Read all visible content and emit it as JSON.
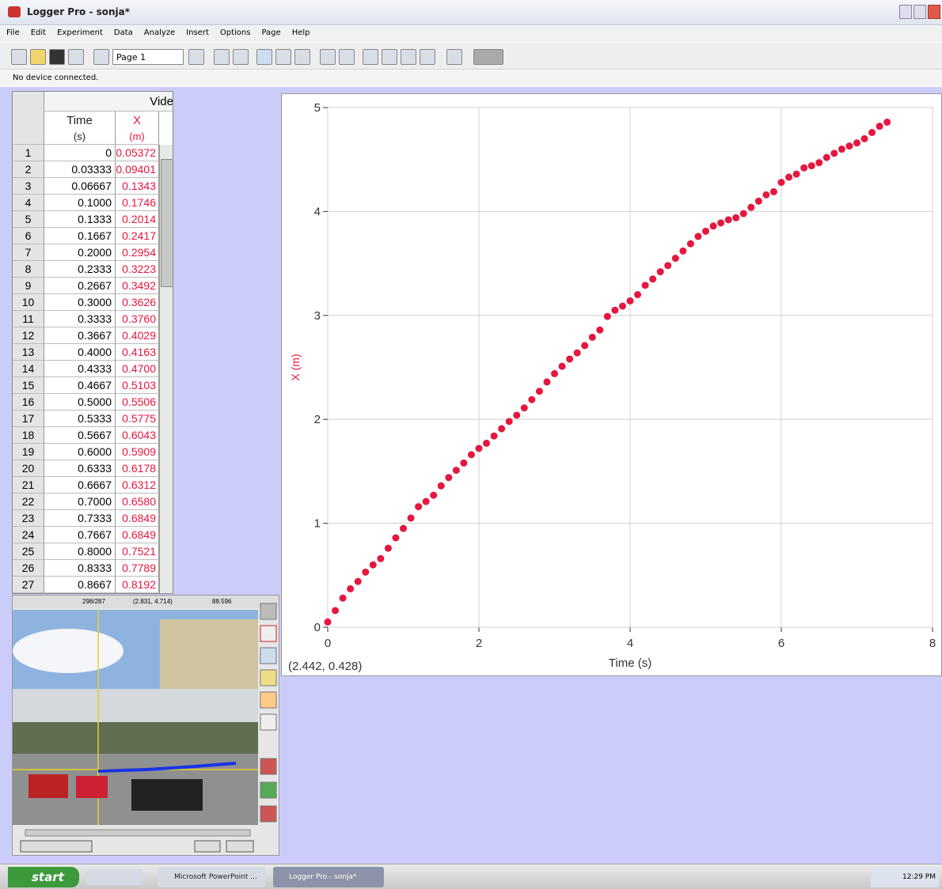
{
  "window": {
    "title": "Logger Pro - sonja*"
  },
  "menu": [
    "File",
    "Edit",
    "Experiment",
    "Data",
    "Analyze",
    "Insert",
    "Options",
    "Page",
    "Help"
  ],
  "toolbar": {
    "page": "Page 1"
  },
  "status": "No device connected.",
  "table": {
    "group": "Vide",
    "columns": [
      {
        "name": "Time",
        "unit": "(s)"
      },
      {
        "name": "X",
        "unit": "(m)"
      }
    ],
    "rows": [
      [
        "1",
        "0",
        "0.05372"
      ],
      [
        "2",
        "0.03333",
        "0.09401"
      ],
      [
        "3",
        "0.06667",
        "0.1343"
      ],
      [
        "4",
        "0.1000",
        "0.1746"
      ],
      [
        "5",
        "0.1333",
        "0.2014"
      ],
      [
        "6",
        "0.1667",
        "0.2417"
      ],
      [
        "7",
        "0.2000",
        "0.2954"
      ],
      [
        "8",
        "0.2333",
        "0.3223"
      ],
      [
        "9",
        "0.2667",
        "0.3492"
      ],
      [
        "10",
        "0.3000",
        "0.3626"
      ],
      [
        "11",
        "0.3333",
        "0.3760"
      ],
      [
        "12",
        "0.3667",
        "0.4029"
      ],
      [
        "13",
        "0.4000",
        "0.4163"
      ],
      [
        "14",
        "0.4333",
        "0.4700"
      ],
      [
        "15",
        "0.4667",
        "0.5103"
      ],
      [
        "16",
        "0.5000",
        "0.5506"
      ],
      [
        "17",
        "0.5333",
        "0.5775"
      ],
      [
        "18",
        "0.5667",
        "0.6043"
      ],
      [
        "19",
        "0.6000",
        "0.5909"
      ],
      [
        "20",
        "0.6333",
        "0.6178"
      ],
      [
        "21",
        "0.6667",
        "0.6312"
      ],
      [
        "22",
        "0.7000",
        "0.6580"
      ],
      [
        "23",
        "0.7333",
        "0.6849"
      ],
      [
        "24",
        "0.7667",
        "0.6849"
      ],
      [
        "25",
        "0.8000",
        "0.7521"
      ],
      [
        "26",
        "0.8333",
        "0.7789"
      ],
      [
        "27",
        "0.8667",
        "0.8192"
      ]
    ]
  },
  "chart_data": {
    "type": "scatter",
    "x_label": "Time (s)",
    "y_label": "X (m)",
    "readout": "(2.442, 0.428)",
    "color": "#e5173f",
    "grid": true,
    "xlim": [
      0,
      8
    ],
    "ylim": [
      0,
      5
    ],
    "xticks": [
      0,
      2,
      4,
      6,
      8
    ],
    "yticks": [
      0,
      1,
      2,
      3,
      4,
      5
    ],
    "x": [
      0,
      0.1,
      0.2,
      0.3,
      0.4,
      0.5,
      0.6,
      0.7,
      0.8,
      0.9,
      1.0,
      1.1,
      1.2,
      1.3,
      1.4,
      1.5,
      1.6,
      1.7,
      1.8,
      1.9,
      2.0,
      2.1,
      2.2,
      2.3,
      2.4,
      2.5,
      2.6,
      2.7,
      2.8,
      2.9,
      3.0,
      3.1,
      3.2,
      3.3,
      3.4,
      3.5,
      3.6,
      3.7,
      3.8,
      3.9,
      4.0,
      4.1,
      4.2,
      4.3,
      4.4,
      4.5,
      4.6,
      4.7,
      4.8,
      4.9,
      5.0,
      5.1,
      5.2,
      5.3,
      5.4,
      5.5,
      5.6,
      5.7,
      5.8,
      5.9,
      6.0,
      6.1,
      6.2,
      6.3,
      6.4,
      6.5,
      6.6,
      6.7,
      6.8,
      6.9,
      7.0,
      7.1,
      7.2,
      7.3,
      7.4
    ],
    "values": [
      0.05,
      0.16,
      0.28,
      0.37,
      0.44,
      0.53,
      0.6,
      0.66,
      0.76,
      0.86,
      0.95,
      1.05,
      1.16,
      1.21,
      1.27,
      1.36,
      1.44,
      1.51,
      1.58,
      1.66,
      1.72,
      1.77,
      1.84,
      1.91,
      1.98,
      2.04,
      2.11,
      2.19,
      2.27,
      2.36,
      2.44,
      2.51,
      2.58,
      2.64,
      2.71,
      2.79,
      2.86,
      2.99,
      3.05,
      3.09,
      3.14,
      3.2,
      3.29,
      3.35,
      3.42,
      3.48,
      3.55,
      3.62,
      3.69,
      3.76,
      3.81,
      3.86,
      3.89,
      3.92,
      3.94,
      3.98,
      4.04,
      4.1,
      4.16,
      4.19,
      4.28,
      4.33,
      4.36,
      4.42,
      4.44,
      4.47,
      4.52,
      4.56,
      4.6,
      4.63,
      4.66,
      4.7,
      4.76,
      4.82,
      4.86
    ]
  },
  "video": {
    "readouts": [
      "298/287",
      "(2.831, 4.714)",
      "88.596"
    ]
  },
  "taskbar": {
    "start": "start",
    "tasks": [
      "Microsoft PowerPoint ...",
      "Logger Pro - sonja*"
    ],
    "clock": "12:29 PM"
  }
}
